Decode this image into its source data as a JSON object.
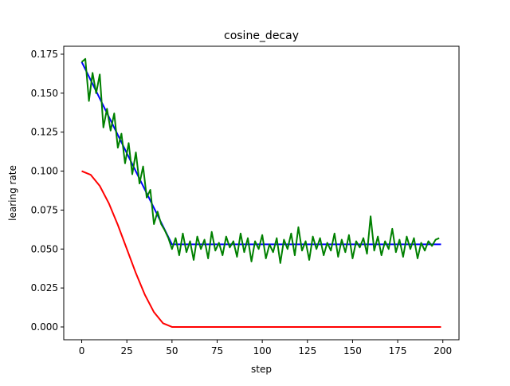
{
  "chart_data": {
    "type": "line",
    "title": "cosine_decay",
    "x_label": "step",
    "y_label": "learing rate",
    "xlim": [
      -9.95,
      208.95
    ],
    "ylim": [
      -0.0082,
      0.1801
    ],
    "xticks": [
      0,
      25,
      50,
      75,
      100,
      125,
      150,
      175,
      200
    ],
    "yticks": [
      {
        "value": 0,
        "label": "0.000"
      },
      {
        "value": 0.025,
        "label": "0.025"
      },
      {
        "value": 0.05,
        "label": "0.050"
      },
      {
        "value": 0.075,
        "label": "0.075"
      },
      {
        "value": 0.1,
        "label": "0.100"
      },
      {
        "value": 0.125,
        "label": "0.125"
      },
      {
        "value": 0.15,
        "label": "0.150"
      },
      {
        "value": 0.175,
        "label": "0.175"
      }
    ],
    "grid": false,
    "series": [
      {
        "color": "#ff0000",
        "x": [
          0,
          5,
          10,
          15,
          20,
          25,
          30,
          35,
          40,
          45,
          50,
          199
        ],
        "values": [
          0.1,
          0.0976,
          0.0905,
          0.0794,
          0.0655,
          0.05,
          0.0345,
          0.0206,
          0.0095,
          0.0024,
          0,
          0
        ]
      },
      {
        "color": "#0000ff",
        "x": [
          0,
          50,
          199
        ],
        "values": [
          0.17,
          0.053,
          0.053
        ]
      },
      {
        "color": "#008000",
        "x": [
          0,
          2,
          4,
          6,
          8,
          10,
          12,
          14,
          16,
          18,
          20,
          22,
          24,
          26,
          28,
          30,
          32,
          34,
          36,
          38,
          40,
          42,
          44,
          46,
          48,
          50,
          52,
          54,
          56,
          58,
          60,
          62,
          64,
          66,
          68,
          70,
          72,
          74,
          76,
          78,
          80,
          82,
          84,
          86,
          88,
          90,
          92,
          94,
          96,
          98,
          100,
          102,
          104,
          106,
          108,
          110,
          112,
          114,
          116,
          118,
          120,
          122,
          124,
          126,
          128,
          130,
          132,
          134,
          136,
          138,
          140,
          142,
          144,
          146,
          148,
          150,
          152,
          154,
          156,
          158,
          160,
          162,
          164,
          166,
          168,
          170,
          172,
          174,
          176,
          178,
          180,
          182,
          184,
          186,
          188,
          190,
          192,
          194,
          196,
          198
        ],
        "values": [
          0.17,
          0.172,
          0.145,
          0.163,
          0.15,
          0.162,
          0.128,
          0.14,
          0.126,
          0.137,
          0.115,
          0.124,
          0.105,
          0.118,
          0.098,
          0.112,
          0.092,
          0.103,
          0.083,
          0.088,
          0.066,
          0.074,
          0.066,
          0.062,
          0.057,
          0.05,
          0.057,
          0.046,
          0.06,
          0.048,
          0.055,
          0.043,
          0.058,
          0.05,
          0.056,
          0.044,
          0.061,
          0.049,
          0.054,
          0.046,
          0.058,
          0.051,
          0.055,
          0.045,
          0.06,
          0.048,
          0.057,
          0.042,
          0.055,
          0.05,
          0.059,
          0.044,
          0.053,
          0.048,
          0.057,
          0.041,
          0.056,
          0.05,
          0.06,
          0.046,
          0.064,
          0.049,
          0.055,
          0.043,
          0.058,
          0.05,
          0.057,
          0.046,
          0.054,
          0.049,
          0.06,
          0.045,
          0.056,
          0.048,
          0.059,
          0.044,
          0.055,
          0.051,
          0.057,
          0.047,
          0.071,
          0.049,
          0.058,
          0.046,
          0.055,
          0.05,
          0.063,
          0.048,
          0.056,
          0.045,
          0.058,
          0.05,
          0.057,
          0.044,
          0.054,
          0.049,
          0.055,
          0.052,
          0.056,
          0.057
        ]
      }
    ]
  }
}
